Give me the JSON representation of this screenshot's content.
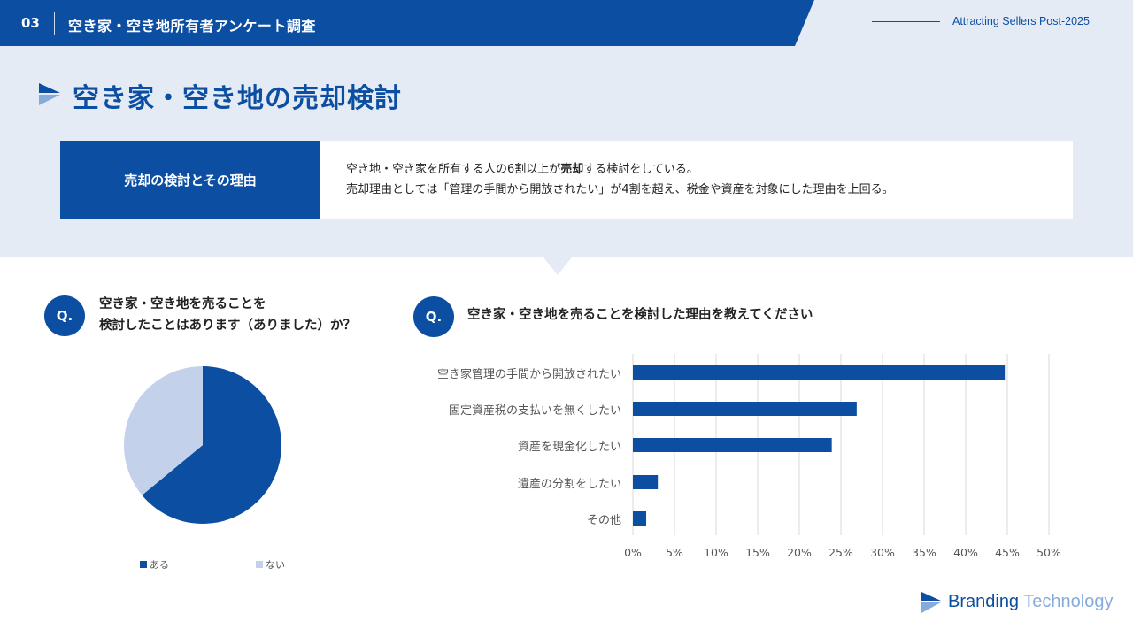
{
  "header": {
    "number": "03",
    "title": "空き家・空き地所有者アンケート調査",
    "subtitle": "Attracting Sellers Post-2025"
  },
  "page": {
    "title": "空き家・空き地の売却検討"
  },
  "summary": {
    "label": "売却の検討とその理由",
    "line1_pre": "空き地・空き家を所有する人の6割以上が",
    "line1_bold": "売却",
    "line1_post": "する検討をしている。",
    "line2": "売却理由としては「管理の手間から開放されたい」が4割を超え、税金や資産を対象にした理由を上回る。"
  },
  "q1": {
    "badge": "Q.",
    "line1": "空き家・空き地を売ることを",
    "line2": "検討したことはあります（ありました）か？"
  },
  "q2": {
    "badge": "Q.",
    "text": "空き家・空き地を売ることを検討した理由を教えてください"
  },
  "logo": {
    "part1": "Branding",
    "part2": "Technology"
  },
  "colors": {
    "primary": "#0b4ea2",
    "light": "#c3d2ea",
    "band": "#e5ebf5"
  },
  "chart_data": [
    {
      "type": "pie",
      "categories": [
        "ある",
        "ない"
      ],
      "values": [
        64,
        36
      ],
      "colors": [
        "#0b4ea2",
        "#c3d2ea"
      ],
      "legend_position": "bottom"
    },
    {
      "type": "bar",
      "orientation": "horizontal",
      "categories": [
        "空き家管理の手間から開放されたい",
        "固定資産税の支払いを無くしたい",
        "資産を現金化したい",
        "遺産の分割をしたい",
        "その他"
      ],
      "values": [
        44.7,
        26.9,
        23.9,
        3.0,
        1.6
      ],
      "x_ticks": [
        "0%",
        "5%",
        "10%",
        "15%",
        "20%",
        "25%",
        "30%",
        "35%",
        "40%",
        "45%",
        "50%"
      ],
      "xlim": [
        0,
        50
      ],
      "grid": true,
      "color": "#0b4ea2"
    }
  ]
}
